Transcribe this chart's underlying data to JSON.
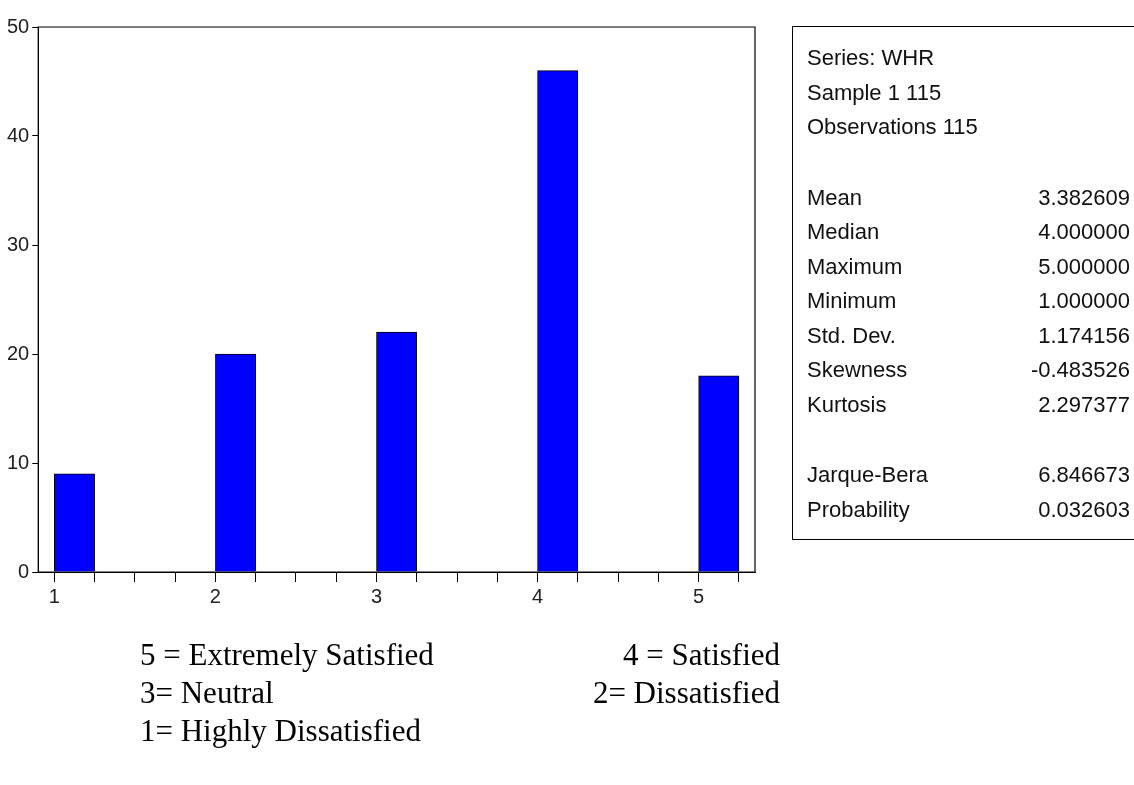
{
  "chart_data": {
    "type": "histogram",
    "bins": [
      1,
      1.25,
      1.5,
      1.75,
      2,
      2.25,
      2.5,
      2.75,
      3,
      3.25,
      3.5,
      3.75,
      4,
      4.25,
      4.5,
      4.75,
      5,
      5.25
    ],
    "values": [
      9,
      0,
      0,
      0,
      20,
      0,
      0,
      0,
      22,
      0,
      0,
      0,
      46,
      0,
      0,
      0,
      18
    ],
    "color": "#0000ff",
    "xlim": [
      0.9,
      5.35
    ],
    "ylim": [
      0,
      50
    ],
    "xticks": [
      1,
      {
        "value": 1.25,
        "label": null
      },
      {
        "value": 1.5,
        "label": null
      },
      {
        "value": 1.75,
        "label": null
      },
      2,
      {
        "value": 2.25,
        "label": null
      },
      {
        "value": 2.5,
        "label": null
      },
      {
        "value": 2.75,
        "label": null
      },
      3,
      {
        "value": 3.25,
        "label": null
      },
      {
        "value": 3.5,
        "label": null
      },
      {
        "value": 3.75,
        "label": null
      },
      4,
      {
        "value": 4.25,
        "label": null
      },
      {
        "value": 4.5,
        "label": null
      },
      {
        "value": 4.75,
        "label": null
      },
      5,
      {
        "value": 5.25,
        "label": null
      }
    ],
    "yticks": [
      0,
      10,
      20,
      30,
      40,
      50
    ],
    "grid": false,
    "annotations": [
      "Series: WHR\t",
      "Sample 1 115\t",
      "Observations 115\t",
      "Mean\t3.382609",
      "Median\t4.000000",
      "Maximum\t5.000000",
      "Minimum\t1.000000",
      "Std. Dev.\t1.174156",
      "Skewness\t-0.483526",
      "Kurtosis\t2.297377",
      "Jarque-Bera\t6.846673",
      "Probability\t0.032603",
      "5 = Extremely Satisfied",
      "4 = Satisfied",
      "3= Neutral",
      "2= Dissatisfied",
      "1= Highly Dissatisfied"
    ]
  }
}
